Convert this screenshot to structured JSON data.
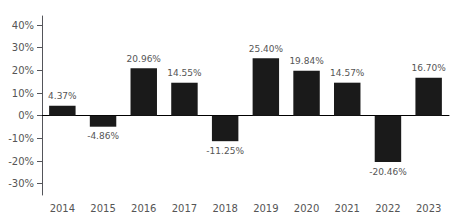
{
  "chart_data": {
    "type": "bar",
    "categories": [
      "2014",
      "2015",
      "2016",
      "2017",
      "2018",
      "2019",
      "2020",
      "2021",
      "2022",
      "2023"
    ],
    "values": [
      4.37,
      -4.86,
      20.96,
      14.55,
      -11.25,
      25.4,
      19.84,
      14.57,
      -20.46,
      16.7
    ],
    "value_labels": [
      "4.37%",
      "-4.86%",
      "20.96%",
      "14.55%",
      "-11.25%",
      "25.40%",
      "19.84%",
      "14.57%",
      "-20.46%",
      "16.70%"
    ],
    "data_labels": true,
    "color": "#1a1a1a",
    "ylim": [
      -35,
      44
    ],
    "yticks": [
      {
        "value": -30,
        "label": "-30%"
      },
      {
        "value": -20,
        "label": "-20%"
      },
      {
        "value": -10,
        "label": "-10%"
      },
      {
        "value": 0,
        "label": "0%"
      },
      {
        "value": 10,
        "label": "10%"
      },
      {
        "value": 20,
        "label": "20%"
      },
      {
        "value": 30,
        "label": "30%"
      },
      {
        "value": 40,
        "label": "40%"
      }
    ],
    "grid": false
  }
}
